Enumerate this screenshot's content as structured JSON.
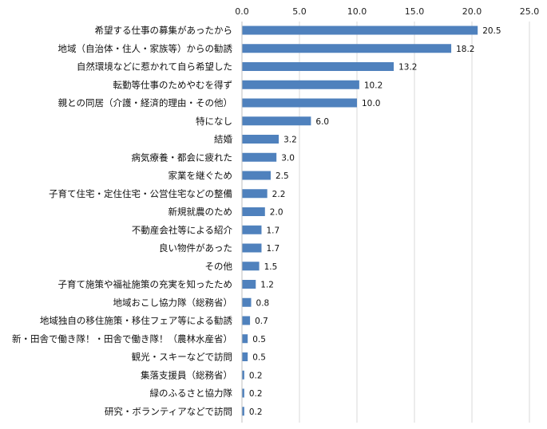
{
  "chart_data": {
    "type": "bar",
    "orientation": "horizontal",
    "title": "",
    "xlabel": "",
    "ylabel": "",
    "xlim": [
      0,
      25
    ],
    "x_ticks": [
      "0.0",
      "5.0",
      "10.0",
      "15.0",
      "20.0",
      "25.0"
    ],
    "x_axis_position": "top",
    "grid": true,
    "bar_color": "#4f81bd",
    "categories": [
      "希望する仕事の募集があったから",
      "地域（自治体・住人・家族等）からの勧誘",
      "自然環境などに惹かれて自ら希望した",
      "転勤等仕事のためやむを得ず",
      "親との同居（介護・経済的理由・その他）",
      "特になし",
      "結婚",
      "病気療養・都会に疲れた",
      "家業を継ぐため",
      "子育て住宅・定住住宅・公営住宅などの整備",
      "新規就農のため",
      "不動産会社等による紹介",
      "良い物件があった",
      "その他",
      "子育て施策や福祉施策の充実を知ったため",
      "地域おこし協力隊（総務省）",
      "地域独自の移住施策・移住フェア等による勧誘",
      "新・田舎で働き隊！・田舎で働き隊！（農林水産省）",
      "観光・スキーなどで訪問",
      "集落支援員（総務省）",
      "緑のふるさと協力隊",
      "研究・ボランティアなどで訪問"
    ],
    "values": [
      20.5,
      18.2,
      13.2,
      10.2,
      10.0,
      6.0,
      3.2,
      3.0,
      2.5,
      2.2,
      2.0,
      1.7,
      1.7,
      1.5,
      1.2,
      0.8,
      0.7,
      0.5,
      0.5,
      0.2,
      0.2,
      0.2
    ],
    "value_labels": [
      "20.5",
      "18.2",
      "13.2",
      "10.2",
      "10.0",
      "6.0",
      "3.2",
      "3.0",
      "2.5",
      "2.2",
      "2.0",
      "1.7",
      "1.7",
      "1.5",
      "1.2",
      "0.8",
      "0.7",
      "0.5",
      "0.5",
      "0.2",
      "0.2",
      "0.2"
    ]
  }
}
